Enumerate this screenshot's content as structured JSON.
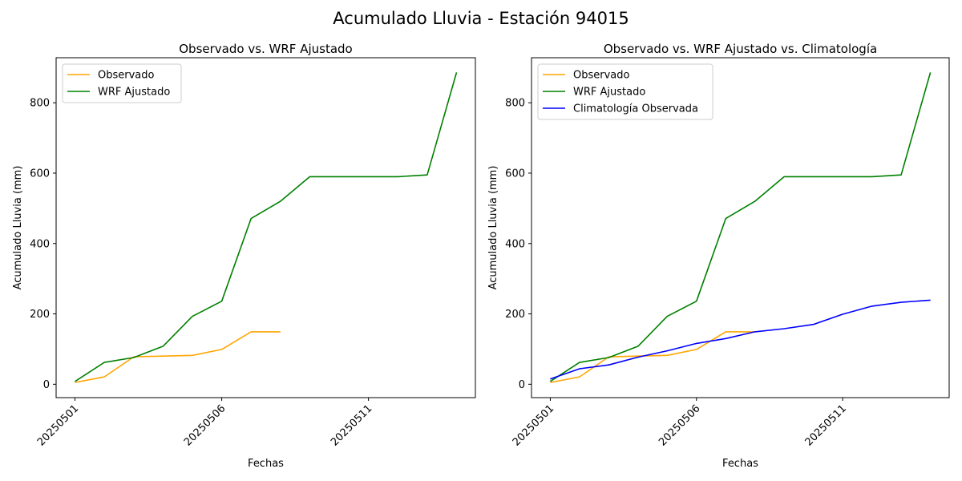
{
  "figure": {
    "title": "Acumulado Lluvia - Estación 94015"
  },
  "colors": {
    "observado": "#ffa500",
    "wrf": "#008000",
    "clim": "#0000ff"
  },
  "chart_data": [
    {
      "type": "line",
      "title": "Observado vs. WRF Ajustado",
      "xlabel": "Fechas",
      "ylabel": "Acumulado Lluvia (mm)",
      "x": [
        "20250501",
        "20250502",
        "20250503",
        "20250504",
        "20250505",
        "20250506",
        "20250507",
        "20250508",
        "20250509",
        "20250510",
        "20250511",
        "20250512",
        "20250513",
        "20250514"
      ],
      "xticks": [
        "20250501",
        "20250506",
        "20250511"
      ],
      "yticks": [
        0,
        200,
        400,
        600,
        800
      ],
      "ylim": [
        -38,
        928
      ],
      "legend": "top-left",
      "grid": false,
      "series": [
        {
          "name": "Observado",
          "color": "#ffa500",
          "values": [
            5,
            21,
            78,
            80,
            82,
            99,
            149,
            149,
            null,
            null,
            null,
            null,
            null,
            null
          ]
        },
        {
          "name": "WRF Ajustado",
          "color": "#008000",
          "values": [
            8,
            62,
            76,
            108,
            193,
            236,
            471,
            520,
            590,
            590,
            590,
            590,
            595,
            886
          ]
        }
      ]
    },
    {
      "type": "line",
      "title": "Observado vs. WRF Ajustado vs. Climatología",
      "xlabel": "Fechas",
      "ylabel": "Acumulado Lluvia (mm)",
      "x": [
        "20250501",
        "20250502",
        "20250503",
        "20250504",
        "20250505",
        "20250506",
        "20250507",
        "20250508",
        "20250509",
        "20250510",
        "20250511",
        "20250512",
        "20250513",
        "20250514"
      ],
      "xticks": [
        "20250501",
        "20250506",
        "20250511"
      ],
      "yticks": [
        0,
        200,
        400,
        600,
        800
      ],
      "ylim": [
        -38,
        928
      ],
      "legend": "top-left",
      "grid": false,
      "series": [
        {
          "name": "Observado",
          "color": "#ffa500",
          "values": [
            5,
            21,
            78,
            80,
            82,
            99,
            149,
            149,
            null,
            null,
            null,
            null,
            null,
            null
          ]
        },
        {
          "name": "WRF Ajustado",
          "color": "#008000",
          "values": [
            8,
            62,
            76,
            108,
            193,
            236,
            471,
            520,
            590,
            590,
            590,
            590,
            595,
            886
          ]
        },
        {
          "name": "Climatología Observada",
          "color": "#0000ff",
          "values": [
            15,
            44,
            55,
            77,
            95,
            116,
            130,
            149,
            158,
            170,
            199,
            222,
            233,
            239
          ]
        }
      ]
    }
  ]
}
